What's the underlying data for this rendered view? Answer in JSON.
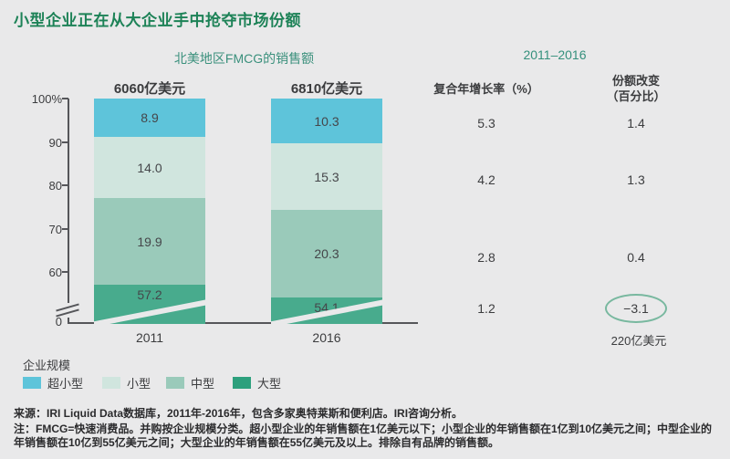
{
  "page": {
    "background": "#e9e9ea"
  },
  "title": "小型企业正在从大企业手中抢夺市场份额",
  "chart_data": {
    "type": "bar",
    "stacked": true,
    "title": "北美地区FMCG的销售额",
    "categories": [
      "2011",
      "2016"
    ],
    "totals": [
      "6060亿美元",
      "6810亿美元"
    ],
    "series": [
      {
        "name": "超小型",
        "color": "#5ec4da",
        "values": [
          8.9,
          10.3
        ],
        "display": [
          "8.9",
          "10.3"
        ]
      },
      {
        "name": "小型",
        "color": "#d0e5de",
        "values": [
          14.0,
          15.3
        ],
        "display": [
          "14.0",
          "15.3"
        ]
      },
      {
        "name": "中型",
        "color": "#9acaba",
        "values": [
          19.9,
          20.3
        ],
        "display": [
          "19.9",
          "20.3"
        ]
      },
      {
        "name": "大型",
        "color": "#48ab8d",
        "values": [
          57.2,
          54.1
        ],
        "display": [
          "57.2",
          "54.1"
        ]
      }
    ],
    "ylabel": "%",
    "ylim": [
      0,
      100
    ],
    "axis_break": true,
    "y_axis": {
      "tick_labels": [
        "100%",
        "90",
        "80",
        "70",
        "60"
      ],
      "zero_label": "0"
    },
    "legend_position": "bottom-left",
    "grid": false
  },
  "table": {
    "period": "2011–2016",
    "col1_header": "复合年增长率（%）",
    "col2_header_line1": "份额改变",
    "col2_header_line2": "（百分比）",
    "rows": [
      {
        "cagr": "5.3",
        "change": "1.4",
        "circled": false
      },
      {
        "cagr": "4.2",
        "change": "1.3",
        "circled": false
      },
      {
        "cagr": "2.8",
        "change": "0.4",
        "circled": false
      },
      {
        "cagr": "1.2",
        "change": "−3.1",
        "circled": true
      }
    ],
    "footnote_value": "220亿美元"
  },
  "legend": {
    "title": "企业规模",
    "items": [
      {
        "label": "超小型",
        "color": "#5ec4da"
      },
      {
        "label": "小型",
        "color": "#d0e5de"
      },
      {
        "label": "中型",
        "color": "#9acaba"
      },
      {
        "label": "大型",
        "color": "#2da07d"
      }
    ]
  },
  "footer": {
    "source": "来源：IRI Liquid Data数据库，2011年-2016年，包含多家奥特莱斯和便利店。IRI咨询分析。",
    "note": "注：FMCG=快速消费品。并购按企业规模分类。超小型企业的年销售额在1亿美元以下；小型企业的年销售额在1亿到10亿美元之间；中型企业的年销售额在10亿到55亿美元之间；大型企业的年销售额在55亿美元及以上。排除自有品牌的销售额。"
  }
}
